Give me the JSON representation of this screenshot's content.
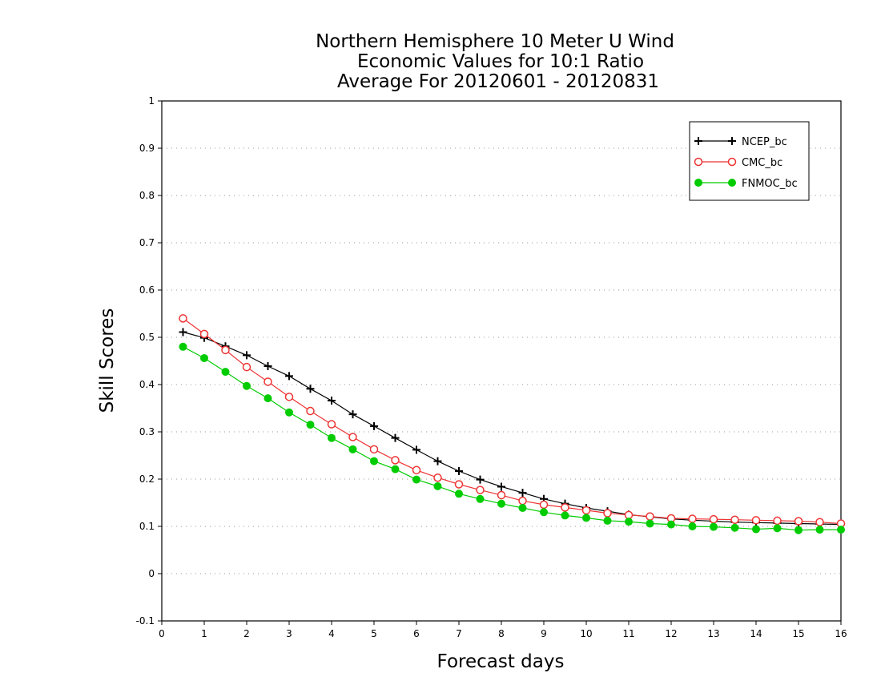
{
  "chart_data": {
    "type": "line",
    "title": [
      "Northern Hemisphere 10 Meter U Wind",
      "Economic Values for 10:1 Ratio",
      "Average For 20120601 - 20120831"
    ],
    "xlabel": "Forecast days",
    "ylabel": "Skill Scores",
    "xlim": [
      0,
      16
    ],
    "ylim": [
      -0.1,
      1
    ],
    "xticks": [
      "0",
      "1",
      "2",
      "3",
      "4",
      "5",
      "6",
      "7",
      "8",
      "9",
      "10",
      "11",
      "12",
      "13",
      "14",
      "15",
      "16"
    ],
    "yticks": [
      "-0.1",
      "0",
      "0.1",
      "0.2",
      "0.3",
      "0.4",
      "0.5",
      "0.6",
      "0.7",
      "0.8",
      "0.9",
      "1"
    ],
    "grid": "dotted horizontal",
    "legend_position": "top-right",
    "x": [
      0.5,
      1,
      1.5,
      2,
      2.5,
      3,
      3.5,
      4,
      4.5,
      5,
      5.5,
      6,
      6.5,
      7,
      7.5,
      8,
      8.5,
      9,
      9.5,
      10,
      10.5,
      11,
      11.5,
      12,
      12.5,
      13,
      13.5,
      14,
      14.5,
      15,
      15.5,
      16
    ],
    "series": [
      {
        "name": "NCEP_bc",
        "color": "#000000",
        "marker": "plus",
        "values": [
          0.511,
          0.499,
          0.481,
          0.462,
          0.439,
          0.418,
          0.391,
          0.366,
          0.337,
          0.312,
          0.287,
          0.262,
          0.238,
          0.217,
          0.199,
          0.184,
          0.171,
          0.158,
          0.148,
          0.139,
          0.132,
          0.125,
          0.12,
          0.116,
          0.113,
          0.111,
          0.109,
          0.108,
          0.107,
          0.106,
          0.105,
          0.104
        ]
      },
      {
        "name": "CMC_bc",
        "color": "#ee3333",
        "marker": "open-circle",
        "values": [
          0.54,
          0.507,
          0.473,
          0.437,
          0.406,
          0.374,
          0.344,
          0.316,
          0.289,
          0.263,
          0.24,
          0.219,
          0.203,
          0.189,
          0.177,
          0.166,
          0.154,
          0.146,
          0.14,
          0.134,
          0.128,
          0.124,
          0.121,
          0.117,
          0.116,
          0.115,
          0.114,
          0.113,
          0.112,
          0.111,
          0.109,
          0.106
        ]
      },
      {
        "name": "FNMOC_bc",
        "color": "#00cc00",
        "marker": "filled-circle",
        "values": [
          0.48,
          0.456,
          0.427,
          0.397,
          0.371,
          0.341,
          0.315,
          0.287,
          0.263,
          0.238,
          0.221,
          0.199,
          0.185,
          0.169,
          0.158,
          0.148,
          0.139,
          0.13,
          0.123,
          0.118,
          0.112,
          0.11,
          0.106,
          0.104,
          0.1,
          0.099,
          0.097,
          0.094,
          0.096,
          0.092,
          0.093,
          0.093
        ]
      }
    ]
  }
}
